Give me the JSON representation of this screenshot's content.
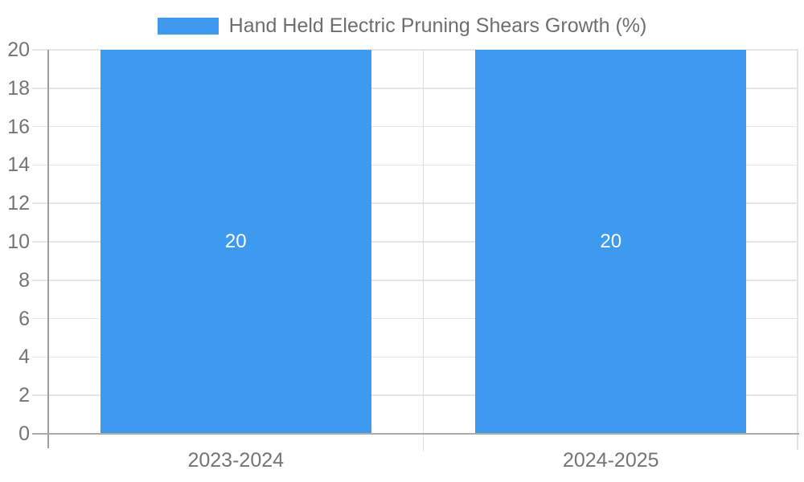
{
  "chart_data": {
    "type": "bar",
    "title": "Hand Held Electric Pruning Shears Growth (%)",
    "categories": [
      "2023-2024",
      "2024-2025"
    ],
    "values": [
      20,
      20
    ],
    "bar_value_labels": [
      "20",
      "20"
    ],
    "xlabel": "",
    "ylabel": "",
    "ylim": [
      0,
      20
    ],
    "yticks": [
      0,
      2,
      4,
      6,
      8,
      10,
      12,
      14,
      16,
      18,
      20
    ],
    "grid": true,
    "legend_position": "top-center",
    "colors": {
      "series": "#3d9aee",
      "bar_label_text": "#ffffff",
      "axis_text": "#757575",
      "legend_text": "#6e6e6e",
      "grid_line": "#e6e6e6",
      "separator_line": "#dedede",
      "right_edge_line": "#e4e4e4",
      "axis_line": "#9e9e9e",
      "baseline": "#ababab",
      "background": "#ffffff"
    }
  }
}
